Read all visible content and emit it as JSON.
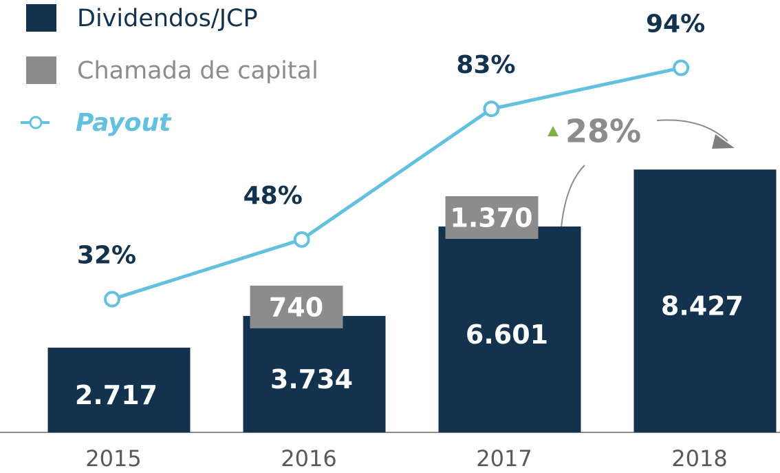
{
  "chart_data": {
    "type": "bar",
    "categories": [
      "2015",
      "2016",
      "2017",
      "2018"
    ],
    "series": [
      {
        "name": "Dividendos/JCP",
        "color": "#12324d",
        "values": [
          2717,
          3734,
          6601,
          8427
        ],
        "value_labels": [
          "2.717",
          "3.734",
          "6.601",
          "8.427"
        ]
      },
      {
        "name": "Chamada de capital",
        "type": "tag",
        "color": "#8c8c8c",
        "values": [
          null,
          740,
          1370,
          null
        ],
        "value_labels": [
          null,
          "740",
          "1.370",
          null
        ]
      },
      {
        "name": "Payout",
        "type": "line",
        "axis": "y2",
        "color": "#64c1de",
        "values": [
          32,
          48,
          83,
          94
        ],
        "value_labels": [
          "32%",
          "48%",
          "83%",
          "94%"
        ]
      }
    ],
    "ylim": [
      0,
      10000
    ],
    "y2lim": [
      0,
      100
    ],
    "annotation": "28%",
    "legend": "top-left"
  }
}
